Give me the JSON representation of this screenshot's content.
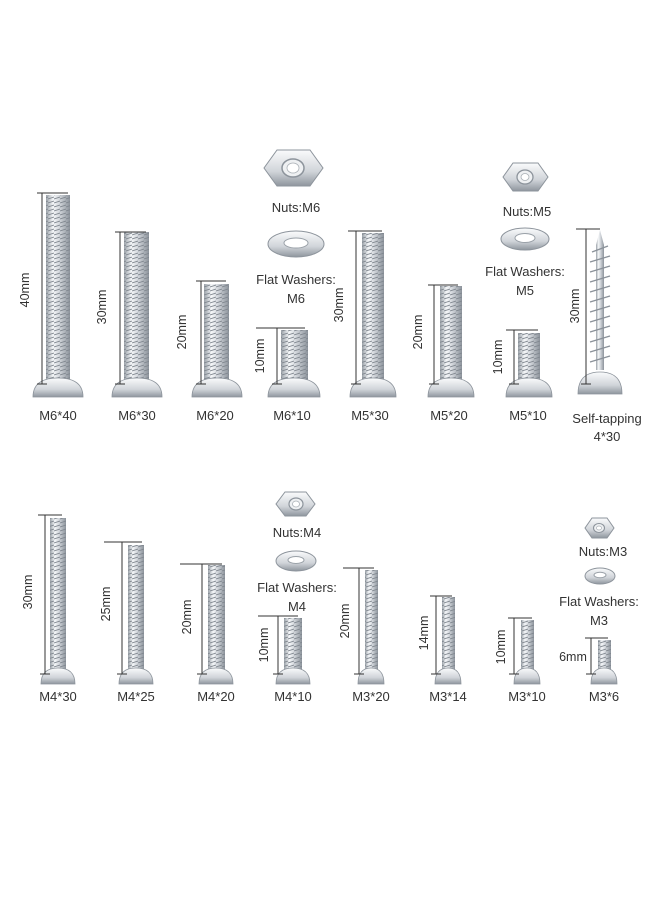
{
  "colors": {
    "metal_light": "#f4f6f8",
    "metal_mid": "#c4c9cf",
    "metal_dark": "#8d949c",
    "line": "#333333",
    "background": "#ffffff"
  },
  "rows": [
    {
      "screws": [
        {
          "label": "M6*40",
          "dim": "40mm",
          "type": "bolt-thick"
        },
        {
          "label": "M6*30",
          "dim": "30mm",
          "type": "bolt-thick"
        },
        {
          "label": "M6*20",
          "dim": "20mm",
          "type": "bolt-thick"
        },
        {
          "label": "M6*10",
          "dim": "10mm",
          "type": "bolt-thick"
        },
        {
          "label": "M5*30",
          "dim": "30mm",
          "type": "bolt"
        },
        {
          "label": "M5*20",
          "dim": "20mm",
          "type": "bolt"
        },
        {
          "label": "M5*10",
          "dim": "10mm",
          "type": "bolt"
        },
        {
          "label": "Self-tapping",
          "label2": "4*30",
          "dim": "30mm",
          "type": "self-tapping"
        }
      ],
      "hardware": [
        {
          "nut_label": "Nuts:M6",
          "washer_label_1": "Flat Washers:",
          "washer_label_2": "M6"
        },
        {
          "nut_label": "Nuts:M5",
          "washer_label_1": "Flat Washers:",
          "washer_label_2": "M5"
        }
      ]
    },
    {
      "screws": [
        {
          "label": "M4*30",
          "dim": "30mm",
          "type": "bolt"
        },
        {
          "label": "M4*25",
          "dim": "25mm",
          "type": "bolt"
        },
        {
          "label": "M4*20",
          "dim": "20mm",
          "type": "bolt"
        },
        {
          "label": "M4*10",
          "dim": "10mm",
          "type": "bolt"
        },
        {
          "label": "M3*20",
          "dim": "20mm",
          "type": "bolt-thin"
        },
        {
          "label": "M3*14",
          "dim": "14mm",
          "type": "bolt-thin"
        },
        {
          "label": "M3*10",
          "dim": "10mm",
          "type": "bolt-thin"
        },
        {
          "label": "M3*6",
          "dim": "6mm",
          "type": "bolt-thin"
        }
      ],
      "hardware": [
        {
          "nut_label": "Nuts:M4",
          "washer_label_1": "Flat Washers:",
          "washer_label_2": "M4"
        },
        {
          "nut_label": "Nuts:M3",
          "washer_label_1": "Flat Washers:",
          "washer_label_2": "M3"
        }
      ]
    }
  ]
}
